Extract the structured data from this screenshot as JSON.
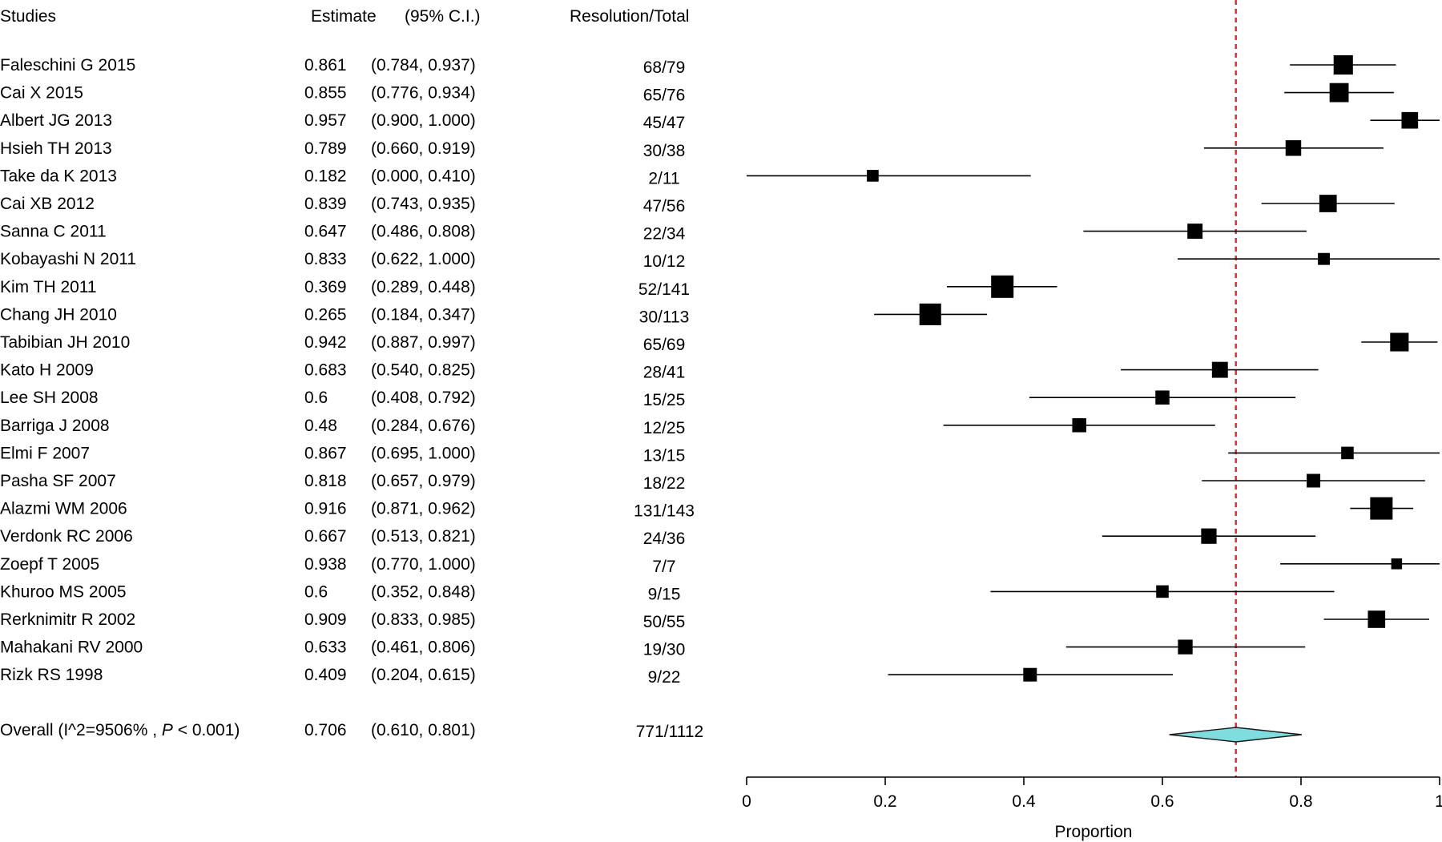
{
  "chart_data": {
    "type": "forest",
    "headers": {
      "studies": "Studies",
      "estimate": "Estimate",
      "ci": "(95% C.I.)",
      "res": "Resolution/Total"
    },
    "rows": [
      {
        "study": "Faleschini G 2015",
        "est": 0.861,
        "ci_text": "(0.784, 0.937)",
        "lo": 0.784,
        "hi": 0.937,
        "n": "68/79"
      },
      {
        "study": "Cai X 2015",
        "est": 0.855,
        "ci_text": "(0.776, 0.934)",
        "lo": 0.776,
        "hi": 0.934,
        "n": "65/76"
      },
      {
        "study": "Albert JG 2013",
        "est": 0.957,
        "ci_text": "(0.900, 1.000)",
        "lo": 0.9,
        "hi": 1.0,
        "n": "45/47"
      },
      {
        "study": "Hsieh TH 2013",
        "est": 0.789,
        "ci_text": "(0.660, 0.919)",
        "lo": 0.66,
        "hi": 0.919,
        "n": "30/38"
      },
      {
        "study": "Take da K 2013",
        "est": 0.182,
        "ci_text": "(0.000, 0.410)",
        "lo": 0.0,
        "hi": 0.41,
        "n": "2/11"
      },
      {
        "study": "Cai XB 2012",
        "est": 0.839,
        "ci_text": "(0.743, 0.935)",
        "lo": 0.743,
        "hi": 0.935,
        "n": "47/56"
      },
      {
        "study": "Sanna C 2011",
        "est": 0.647,
        "ci_text": "(0.486, 0.808)",
        "lo": 0.486,
        "hi": 0.808,
        "n": "22/34"
      },
      {
        "study": "Kobayashi N 2011",
        "est": 0.833,
        "ci_text": "(0.622, 1.000)",
        "lo": 0.622,
        "hi": 1.0,
        "n": "10/12"
      },
      {
        "study": "Kim TH 2011",
        "est": 0.369,
        "ci_text": "(0.289, 0.448)",
        "lo": 0.289,
        "hi": 0.448,
        "n": "52/141"
      },
      {
        "study": "Chang JH 2010",
        "est": 0.265,
        "ci_text": "(0.184, 0.347)",
        "lo": 0.184,
        "hi": 0.347,
        "n": "30/113"
      },
      {
        "study": "Tabibian JH 2010",
        "est": 0.942,
        "ci_text": "(0.887, 0.997)",
        "lo": 0.887,
        "hi": 0.997,
        "n": "65/69"
      },
      {
        "study": "Kato H 2009",
        "est": 0.683,
        "ci_text": "(0.540, 0.825)",
        "lo": 0.54,
        "hi": 0.825,
        "n": "28/41"
      },
      {
        "study": "Lee SH 2008",
        "est": 0.6,
        "ci_text": "(0.408, 0.792)",
        "lo": 0.408,
        "hi": 0.792,
        "n": "15/25"
      },
      {
        "study": "Barriga J 2008",
        "est": 0.48,
        "ci_text": "(0.284, 0.676)",
        "lo": 0.284,
        "hi": 0.676,
        "n": "12/25"
      },
      {
        "study": "Elmi F 2007",
        "est": 0.867,
        "ci_text": "(0.695, 1.000)",
        "lo": 0.695,
        "hi": 1.0,
        "n": "13/15"
      },
      {
        "study": "Pasha SF 2007",
        "est": 0.818,
        "ci_text": "(0.657, 0.979)",
        "lo": 0.657,
        "hi": 0.979,
        "n": "18/22"
      },
      {
        "study": "Alazmi WM 2006",
        "est": 0.916,
        "ci_text": "(0.871, 0.962)",
        "lo": 0.871,
        "hi": 0.962,
        "n": "131/143"
      },
      {
        "study": "Verdonk RC 2006",
        "est": 0.667,
        "ci_text": "(0.513, 0.821)",
        "lo": 0.513,
        "hi": 0.821,
        "n": "24/36"
      },
      {
        "study": "Zoepf T 2005",
        "est": 0.938,
        "ci_text": "(0.770, 1.000)",
        "lo": 0.77,
        "hi": 1.0,
        "n": "7/7"
      },
      {
        "study": "Khuroo MS 2005",
        "est": 0.6,
        "ci_text": "(0.352, 0.848)",
        "lo": 0.352,
        "hi": 0.848,
        "n": "9/15"
      },
      {
        "study": "Rerknimitr R 2002",
        "est": 0.909,
        "ci_text": "(0.833, 0.985)",
        "lo": 0.833,
        "hi": 0.985,
        "n": "50/55"
      },
      {
        "study": "Mahakani RV 2000",
        "est": 0.633,
        "ci_text": "(0.461, 0.806)",
        "lo": 0.461,
        "hi": 0.806,
        "n": "19/30"
      },
      {
        "study": "Rizk RS 1998",
        "est": 0.409,
        "ci_text": "(0.204, 0.615)",
        "lo": 0.204,
        "hi": 0.615,
        "n": "9/22"
      }
    ],
    "overall": {
      "label_prefix": "Overall (I^2=9506% , ",
      "label_p": "P",
      "label_suffix": " < 0.001)",
      "est": 0.706,
      "ci_text": "(0.610, 0.801)",
      "lo": 0.61,
      "hi": 0.801,
      "n": "771/1112"
    },
    "reference_line": 0.706,
    "xlim": [
      0,
      1
    ],
    "ticks": [
      0,
      0.2,
      0.4,
      0.6,
      0.8,
      1
    ],
    "tick_labels": [
      "0",
      "0.2",
      "0.4",
      "0.6",
      "0.8",
      "1"
    ],
    "xlabel": "Proportion",
    "colors": {
      "marker": "#000000",
      "diamond": "#7fdde0",
      "reference": "#e8202a"
    }
  }
}
